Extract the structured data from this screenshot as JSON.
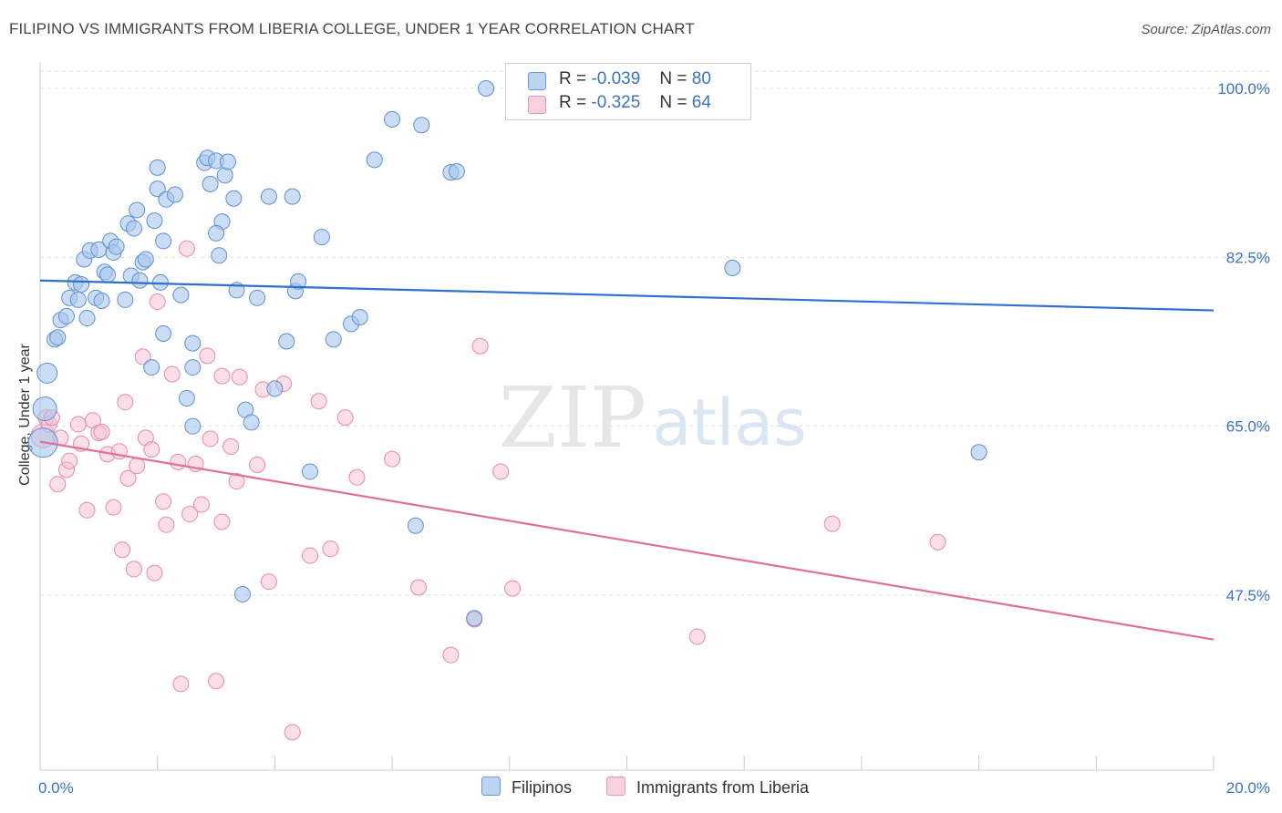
{
  "header": {
    "title": "FILIPINO VS IMMIGRANTS FROM LIBERIA COLLEGE, UNDER 1 YEAR CORRELATION CHART",
    "source": "Source: ZipAtlas.com"
  },
  "watermark": {
    "part1": "ZIP",
    "part2": "atlas"
  },
  "legend": {
    "rows": [
      {
        "r_label": "R =",
        "r_value": "-0.039",
        "n_label": "N =",
        "n_value": "80"
      },
      {
        "r_label": "R =",
        "r_value": "-0.325",
        "n_label": "N =",
        "n_value": "64"
      }
    ]
  },
  "bottom_legend": {
    "series1": "Filipinos",
    "series2": "Immigrants from Liberia"
  },
  "colors": {
    "blue_fill": "#a9c6ee",
    "blue_stroke": "#5f8fd3",
    "blue_line": "#2f6fce",
    "pink_fill": "#f7c3d3",
    "pink_stroke": "#e88aa9",
    "pink_line": "#e0709a",
    "tick_text": "#3b73c4",
    "grid": "#dddddd"
  },
  "chart_data": {
    "type": "scatter",
    "title": "FILIPINO VS IMMIGRANTS FROM LIBERIA COLLEGE, UNDER 1 YEAR CORRELATION CHART",
    "xlabel": "",
    "ylabel": "College, Under 1 year",
    "xlim": [
      0,
      20
    ],
    "ylim": [
      32,
      102
    ],
    "x_tick_labels": [
      "0.0%",
      "20.0%"
    ],
    "y_ticks": [
      {
        "value": 47.5,
        "label": "47.5%"
      },
      {
        "value": 65.0,
        "label": "65.0%"
      },
      {
        "value": 82.5,
        "label": "82.5%"
      },
      {
        "value": 100.0,
        "label": "100.0%"
      }
    ],
    "series": [
      {
        "name": "Filipinos",
        "R": -0.039,
        "N": 80,
        "trend": {
          "x": [
            0,
            20
          ],
          "y": [
            80.1,
            77.0
          ]
        },
        "points": [
          [
            0.05,
            63.3
          ],
          [
            0.08,
            66.8
          ],
          [
            0.12,
            70.5
          ],
          [
            0.25,
            74.0
          ],
          [
            0.3,
            74.2
          ],
          [
            0.35,
            76.0
          ],
          [
            0.45,
            76.4
          ],
          [
            0.5,
            78.3
          ],
          [
            0.6,
            79.9
          ],
          [
            0.65,
            78.1
          ],
          [
            0.7,
            79.7
          ],
          [
            0.75,
            82.3
          ],
          [
            0.8,
            76.2
          ],
          [
            0.85,
            83.2
          ],
          [
            0.95,
            78.3
          ],
          [
            1.0,
            83.3
          ],
          [
            1.05,
            78.0
          ],
          [
            1.1,
            81.0
          ],
          [
            1.15,
            80.7
          ],
          [
            1.2,
            84.2
          ],
          [
            1.25,
            83.0
          ],
          [
            1.3,
            83.6
          ],
          [
            1.45,
            78.1
          ],
          [
            1.5,
            86.0
          ],
          [
            1.55,
            80.6
          ],
          [
            1.65,
            87.4
          ],
          [
            1.7,
            80.1
          ],
          [
            1.75,
            82.0
          ],
          [
            1.8,
            82.3
          ],
          [
            1.9,
            71.1
          ],
          [
            1.95,
            86.3
          ],
          [
            2.0,
            89.6
          ],
          [
            2.0,
            91.8
          ],
          [
            2.05,
            79.9
          ],
          [
            2.1,
            84.2
          ],
          [
            2.15,
            88.5
          ],
          [
            2.3,
            89.0
          ],
          [
            2.4,
            78.6
          ],
          [
            2.5,
            67.9
          ],
          [
            2.6,
            73.6
          ],
          [
            2.6,
            71.1
          ],
          [
            2.6,
            65.0
          ],
          [
            2.8,
            92.3
          ],
          [
            2.85,
            92.8
          ],
          [
            2.9,
            90.1
          ],
          [
            3.0,
            92.5
          ],
          [
            3.05,
            82.7
          ],
          [
            3.1,
            86.2
          ],
          [
            3.15,
            91.0
          ],
          [
            3.2,
            92.4
          ],
          [
            3.3,
            88.6
          ],
          [
            3.35,
            79.1
          ],
          [
            3.45,
            47.6
          ],
          [
            3.5,
            66.7
          ],
          [
            3.6,
            65.4
          ],
          [
            3.7,
            78.3
          ],
          [
            3.9,
            88.8
          ],
          [
            4.0,
            68.9
          ],
          [
            4.2,
            73.8
          ],
          [
            4.3,
            88.8
          ],
          [
            4.35,
            79.0
          ],
          [
            4.4,
            80.0
          ],
          [
            4.6,
            60.3
          ],
          [
            4.8,
            84.6
          ],
          [
            5.0,
            74.0
          ],
          [
            5.3,
            75.6
          ],
          [
            5.45,
            76.3
          ],
          [
            5.7,
            92.6
          ],
          [
            6.0,
            96.8
          ],
          [
            6.4,
            54.7
          ],
          [
            6.5,
            96.2
          ],
          [
            7.0,
            91.3
          ],
          [
            7.1,
            91.4
          ],
          [
            7.4,
            45.1
          ],
          [
            7.6,
            100.0
          ],
          [
            11.8,
            81.4
          ],
          [
            16.0,
            62.3
          ],
          [
            2.1,
            74.6
          ],
          [
            1.6,
            85.5
          ],
          [
            3.0,
            85.0
          ]
        ]
      },
      {
        "name": "Immigrants from Liberia",
        "R": -0.325,
        "N": 64,
        "trend": {
          "x": [
            0,
            20
          ],
          "y": [
            63.4,
            42.9
          ]
        },
        "points": [
          [
            0.05,
            64.0
          ],
          [
            0.1,
            65.9
          ],
          [
            0.15,
            65.2
          ],
          [
            0.2,
            65.9
          ],
          [
            0.3,
            59.0
          ],
          [
            0.35,
            63.8
          ],
          [
            0.45,
            60.5
          ],
          [
            0.5,
            61.4
          ],
          [
            0.65,
            65.2
          ],
          [
            0.7,
            63.2
          ],
          [
            0.8,
            56.3
          ],
          [
            0.9,
            65.6
          ],
          [
            1.0,
            64.3
          ],
          [
            1.05,
            64.4
          ],
          [
            1.15,
            62.1
          ],
          [
            1.25,
            56.6
          ],
          [
            1.35,
            62.4
          ],
          [
            1.4,
            52.2
          ],
          [
            1.45,
            67.5
          ],
          [
            1.5,
            59.6
          ],
          [
            1.6,
            50.2
          ],
          [
            1.65,
            60.9
          ],
          [
            1.75,
            72.2
          ],
          [
            1.8,
            63.8
          ],
          [
            1.9,
            62.6
          ],
          [
            1.95,
            49.8
          ],
          [
            2.0,
            77.9
          ],
          [
            2.1,
            57.2
          ],
          [
            2.15,
            54.8
          ],
          [
            2.25,
            70.4
          ],
          [
            2.35,
            61.3
          ],
          [
            2.4,
            38.3
          ],
          [
            2.5,
            83.4
          ],
          [
            2.55,
            55.9
          ],
          [
            2.65,
            61.1
          ],
          [
            2.75,
            56.9
          ],
          [
            2.85,
            72.3
          ],
          [
            2.9,
            63.7
          ],
          [
            3.0,
            38.6
          ],
          [
            3.1,
            70.2
          ],
          [
            3.1,
            55.1
          ],
          [
            3.25,
            62.9
          ],
          [
            3.35,
            59.3
          ],
          [
            3.4,
            70.1
          ],
          [
            3.7,
            61.0
          ],
          [
            3.8,
            68.8
          ],
          [
            3.9,
            48.9
          ],
          [
            4.15,
            69.4
          ],
          [
            4.3,
            33.3
          ],
          [
            4.6,
            51.6
          ],
          [
            4.75,
            67.6
          ],
          [
            4.95,
            52.3
          ],
          [
            5.2,
            65.9
          ],
          [
            5.4,
            59.7
          ],
          [
            6.0,
            61.6
          ],
          [
            6.45,
            48.3
          ],
          [
            7.0,
            41.3
          ],
          [
            7.4,
            45.0
          ],
          [
            7.5,
            73.3
          ],
          [
            7.85,
            60.3
          ],
          [
            8.05,
            48.2
          ],
          [
            11.2,
            43.2
          ],
          [
            13.5,
            54.9
          ],
          [
            15.3,
            53.0
          ]
        ]
      }
    ]
  }
}
